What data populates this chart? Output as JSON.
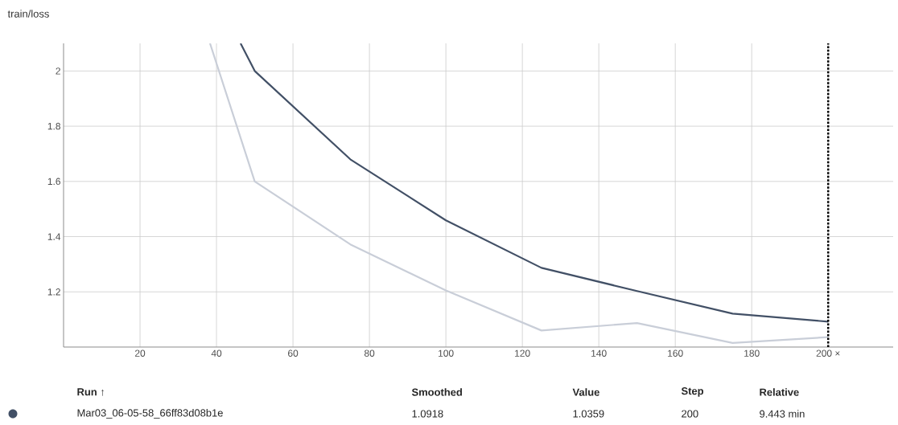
{
  "chart_data": {
    "type": "line",
    "title": "train/loss",
    "xlim": [
      0,
      217
    ],
    "ylim": [
      1.0,
      2.1
    ],
    "xticks": [
      20,
      40,
      60,
      80,
      100,
      120,
      140,
      160,
      180,
      {
        "value": 200,
        "label": "200 ×"
      }
    ],
    "yticks": [
      1.2,
      1.4,
      1.6,
      1.8,
      2
    ],
    "grid": true,
    "legend": "bottom left",
    "marker": "none",
    "line_style": "solid",
    "series": [
      {
        "color": "#c9ced8",
        "x": [
          38.3,
          50,
          75,
          100,
          125,
          150,
          175,
          200
        ],
        "values": [
          2.1,
          1.6,
          1.372,
          1.205,
          1.06,
          1.087,
          1.015,
          1.036
        ]
      },
      {
        "name": "Mar03_06-05-58_66ff83d08b1e",
        "color": "#425066",
        "x": [
          46.3,
          50,
          75,
          100,
          125,
          150,
          175,
          200
        ],
        "values": [
          2.1,
          2.0,
          1.68,
          1.459,
          1.287,
          1.203,
          1.121,
          1.092
        ]
      }
    ],
    "ref_lines": [
      {
        "axis": "x",
        "value": 200,
        "color": "#000000",
        "line_style": "dotted"
      }
    ],
    "annotations": [
      "Run ↑",
      "Smoothed",
      "Value",
      "Step",
      "Relative",
      "1.0918",
      "1.0359",
      "200",
      "9.443 min"
    ]
  }
}
